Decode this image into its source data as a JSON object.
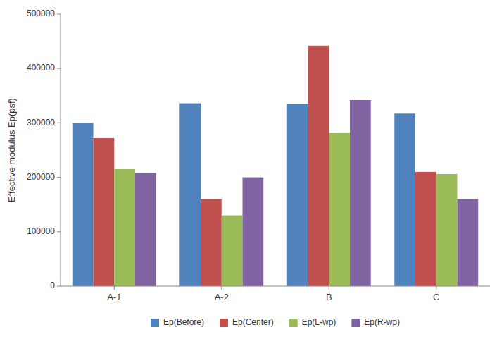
{
  "chart_data": {
    "type": "bar",
    "categories": [
      "A-1",
      "A-2",
      "B",
      "C"
    ],
    "series": [
      {
        "name": "Ep(Before)",
        "color": "#4F81BD",
        "values": [
          300000,
          336000,
          335000,
          317000
        ]
      },
      {
        "name": "Ep(Center)",
        "color": "#C0504D",
        "values": [
          272000,
          160000,
          442000,
          210000
        ]
      },
      {
        "name": "Ep(L-wp)",
        "color": "#9BBB59",
        "values": [
          215000,
          130000,
          282000,
          206000
        ]
      },
      {
        "name": "Ep(R-wp)",
        "color": "#8064A2",
        "values": [
          208000,
          200000,
          342000,
          160000
        ]
      }
    ],
    "y_label": "Effective modulus Ep(psf)",
    "ylim": [
      0,
      500000
    ],
    "yticks": [
      0,
      100000,
      200000,
      300000,
      400000,
      500000
    ],
    "grid": false,
    "legend": "bottom"
  }
}
